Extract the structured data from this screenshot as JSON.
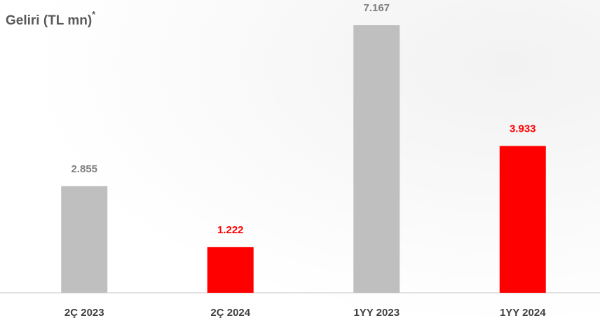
{
  "chart_data": {
    "type": "bar",
    "title": "Geliri (TL mn)",
    "title_marker": "*",
    "categories": [
      "2Ç 2023",
      "2Ç 2024",
      "1YY 2023",
      "1YY 2024"
    ],
    "values": [
      2855,
      1222,
      7167,
      3933
    ],
    "value_labels": [
      "2.855",
      "1.222",
      "7.167",
      "3.933"
    ],
    "colors": [
      "#bfbfbf",
      "#ff0000",
      "#bfbfbf",
      "#ff0000"
    ],
    "label_colors": [
      "#7f7f7f",
      "#ff0000",
      "#7f7f7f",
      "#ff0000"
    ]
  }
}
